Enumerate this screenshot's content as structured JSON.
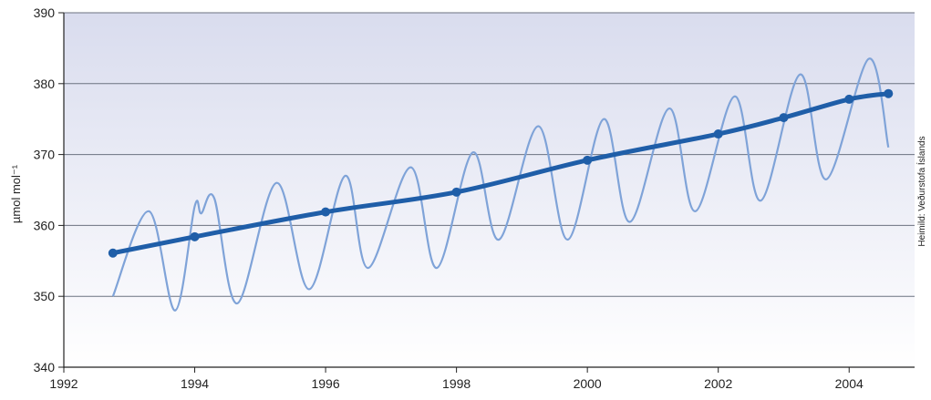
{
  "chart_data": {
    "type": "line",
    "title": "",
    "xlabel": "",
    "ylabel": "µmol mol⁻¹",
    "xlim": [
      1992,
      2005
    ],
    "ylim": [
      340,
      390
    ],
    "x_ticks": [
      1992,
      1994,
      1996,
      1998,
      2000,
      2002,
      2004
    ],
    "y_ticks": [
      340,
      350,
      360,
      370,
      380,
      390
    ],
    "grid": true,
    "source_note": "Heimild: Veðurstofa Íslands",
    "colors": {
      "trend": "#1f5ea8",
      "seasonal": "#7fa3d8",
      "grid": "#6b7280",
      "background_top": "#d9dcee",
      "background_bottom": "#ffffff"
    },
    "series": [
      {
        "role": "seasonal",
        "x": [
          1992.75,
          1993.3,
          1993.7,
          1994.0,
          1994.1,
          1994.3,
          1994.65,
          1995.25,
          1995.75,
          1996.3,
          1996.65,
          1997.3,
          1997.7,
          1998.25,
          1998.65,
          1999.25,
          1999.7,
          2000.25,
          2000.65,
          2001.25,
          2001.65,
          2002.25,
          2002.65,
          2003.25,
          2003.65,
          2004.3,
          2004.6
        ],
        "y": [
          350,
          362,
          348,
          362.7,
          361.7,
          363.8,
          349,
          366,
          351,
          367,
          354,
          368.2,
          354,
          370.3,
          358,
          374,
          358,
          375,
          360.5,
          376.5,
          362,
          378.2,
          363.5,
          381.3,
          366.5,
          383.5,
          371
        ]
      },
      {
        "role": "trend",
        "x": [
          1992.75,
          1994.0,
          1996.0,
          1998.0,
          2000.0,
          2002.0,
          2003.0,
          2004.0,
          2004.6
        ],
        "y": [
          356.1,
          358.4,
          361.9,
          364.7,
          369.2,
          372.9,
          375.2,
          377.8,
          378.6
        ],
        "markers": true
      }
    ]
  }
}
